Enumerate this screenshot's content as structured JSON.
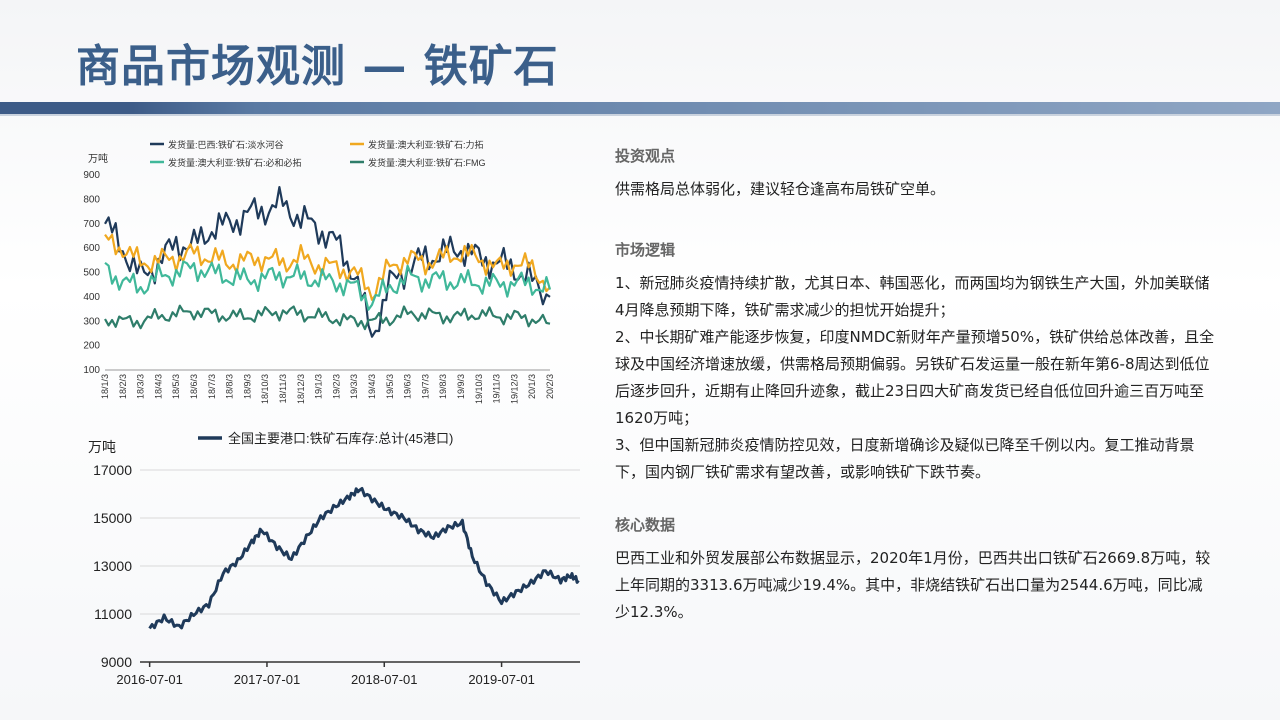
{
  "title": "商品市场观测 — 铁矿石",
  "sections": [
    {
      "title": "投资观点",
      "paras": [
        "供需格局总体弱化，建议轻仓逢高布局铁矿空单。"
      ]
    },
    {
      "title": "市场逻辑",
      "paras": [
        "1、新冠肺炎疫情持续扩散，尤其日本、韩国恶化，而两国均为钢铁生产大国，外加美联储4月降息预期下降，铁矿需求减少的担忧开始提升；",
        "2、中长期矿难产能逐步恢复，印度NMDC新财年产量预增50%，铁矿供给总体改善，且全球及中国经济增速放缓，供需格局预期偏弱。另铁矿石发运量一般在新年第6-8周达到低位后逐步回升，近期有止降回升迹象，截止23日四大矿商发货已经自低位回升逾三百万吨至1620万吨；",
        "3、但中国新冠肺炎疫情防控见效，日度新增确诊及疑似已降至千例以内。复工推动背景下，国内钢厂铁矿需求有望改善，或影响铁矿下跌节奏。"
      ]
    },
    {
      "title": "核心数据",
      "paras": [
        "巴西工业和外贸发展部公布数据显示，2020年1月份，巴西共出口铁矿石2669.8万吨，较上年同期的3313.6万吨减少19.4%。其中，非烧结铁矿石出口量为2544.6万吨，同比减少12.3%。"
      ]
    }
  ],
  "chart_data": [
    {
      "type": "line",
      "ylabel": "万吨",
      "ylim": [
        100,
        900
      ],
      "yticks": [
        "100",
        "200",
        "300",
        "400",
        "500",
        "600",
        "700",
        "800",
        "900"
      ],
      "x": [
        "18/1/3",
        "18/2/3",
        "18/3/3",
        "18/4/3",
        "18/5/3",
        "18/6/3",
        "18/7/3",
        "18/8/3",
        "18/9/3",
        "18/10/3",
        "18/11/3",
        "18/12/3",
        "19/1/3",
        "19/2/3",
        "19/3/3",
        "19/4/3",
        "19/5/3",
        "19/6/3",
        "19/7/3",
        "19/8/3",
        "19/9/3",
        "19/10/3",
        "19/11/3",
        "19/12/3",
        "20/1/3",
        "20/2/3"
      ],
      "legend_position": "top",
      "series": [
        {
          "name": "发货量:巴西:铁矿石:淡水河谷",
          "color": "#1f3a5a",
          "values": [
            700,
            600,
            480,
            540,
            620,
            610,
            680,
            700,
            740,
            760,
            780,
            720,
            680,
            620,
            500,
            240,
            450,
            520,
            560,
            580,
            600,
            560,
            540,
            520,
            460,
            400
          ]
        },
        {
          "name": "发货量:澳大利亚:铁矿石:力拓",
          "color": "#f0a820",
          "values": [
            630,
            600,
            540,
            550,
            560,
            580,
            560,
            540,
            550,
            560,
            540,
            560,
            530,
            520,
            500,
            420,
            520,
            560,
            540,
            560,
            580,
            560,
            520,
            540,
            520,
            440
          ]
        },
        {
          "name": "发货量:澳大利亚:铁矿石:必和必拓",
          "color": "#40b89a",
          "values": [
            520,
            460,
            440,
            480,
            500,
            520,
            500,
            480,
            470,
            480,
            490,
            480,
            470,
            460,
            440,
            380,
            440,
            480,
            470,
            470,
            460,
            460,
            450,
            460,
            450,
            430
          ]
        },
        {
          "name": "发货量:澳大利亚:铁矿石:FMG",
          "color": "#2e7d6a",
          "values": [
            310,
            300,
            300,
            320,
            330,
            340,
            330,
            320,
            320,
            330,
            340,
            330,
            320,
            310,
            300,
            300,
            310,
            330,
            330,
            320,
            320,
            330,
            320,
            320,
            310,
            290
          ]
        }
      ]
    },
    {
      "type": "line",
      "ylabel": "万吨",
      "ylim": [
        9000,
        17000
      ],
      "yticks": [
        "9000",
        "11000",
        "13000",
        "15000",
        "17000"
      ],
      "xticks": [
        "2016-07-01",
        "2017-07-01",
        "2018-07-01",
        "2019-07-01"
      ],
      "legend_position": "top",
      "series": [
        {
          "name": "全国主要港口:铁矿石库存:总计(45港口)",
          "color": "#1f3a5a",
          "points": [
            [
              "2016-07-01",
              10400
            ],
            [
              "2016-08-15",
              10850
            ],
            [
              "2016-10-01",
              10450
            ],
            [
              "2016-11-15",
              11000
            ],
            [
              "2017-01-01",
              11400
            ],
            [
              "2017-02-15",
              12700
            ],
            [
              "2017-04-01",
              13200
            ],
            [
              "2017-05-15",
              14000
            ],
            [
              "2017-06-15",
              14500
            ],
            [
              "2017-08-01",
              13800
            ],
            [
              "2017-09-15",
              13300
            ],
            [
              "2017-11-01",
              14200
            ],
            [
              "2017-12-15",
              15000
            ],
            [
              "2018-02-01",
              15500
            ],
            [
              "2018-03-15",
              15900
            ],
            [
              "2018-04-15",
              16200
            ],
            [
              "2018-06-01",
              15700
            ],
            [
              "2018-07-15",
              15300
            ],
            [
              "2018-09-01",
              15000
            ],
            [
              "2018-10-15",
              14500
            ],
            [
              "2018-12-01",
              14200
            ],
            [
              "2019-01-15",
              14600
            ],
            [
              "2019-03-01",
              14800
            ],
            [
              "2019-04-01",
              13400
            ],
            [
              "2019-05-15",
              12300
            ],
            [
              "2019-07-01",
              11500
            ],
            [
              "2019-08-15",
              11900
            ],
            [
              "2019-10-01",
              12300
            ],
            [
              "2019-11-15",
              12800
            ],
            [
              "2020-01-01",
              12400
            ],
            [
              "2020-02-01",
              12600
            ],
            [
              "2020-02-25",
              12400
            ]
          ]
        }
      ]
    }
  ]
}
